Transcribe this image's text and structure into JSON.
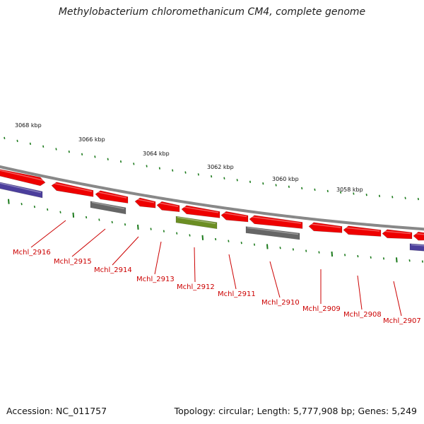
{
  "title": "Methylobacterium chloromethanicum CM4, complete genome",
  "footer": {
    "accession": "Accession: NC_011757",
    "stats": "Topology: circular; Length: 5,777,908 bp; Genes: 5,249"
  },
  "colors": {
    "gene_forward": "#ee0000",
    "gene_other_grey": "#666666",
    "gene_green": "#6b8e23",
    "gene_blue": "#4b3e9c",
    "backbone": "#888888",
    "ticks": "#1b7a1b",
    "labels": "#cc0000"
  },
  "scale_labels": [
    "3068 kbp",
    "3066 kbp",
    "3064 kbp",
    "3062 kbp",
    "3060 kbp",
    "3058 kbp"
  ],
  "gene_labels": [
    "Mchl_2916",
    "Mchl_2915",
    "Mchl_2914",
    "Mchl_2913",
    "Mchl_2912",
    "Mchl_2911",
    "Mchl_2910",
    "Mchl_2909",
    "Mchl_2908",
    "Mchl_2907"
  ]
}
